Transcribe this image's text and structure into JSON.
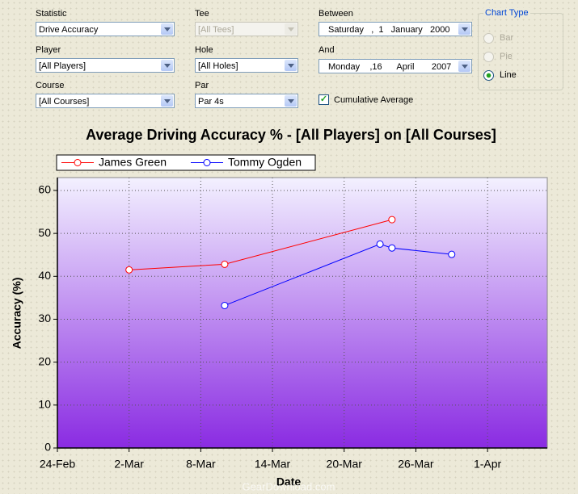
{
  "form": {
    "statistic": {
      "label": "Statistic",
      "value": "Drive Accuracy"
    },
    "tee": {
      "label": "Tee",
      "value": "[All Tees]"
    },
    "between": {
      "label": "Between",
      "weekday": "Saturday",
      "day": "1",
      "month": "January",
      "year": "2000"
    },
    "player": {
      "label": "Player",
      "value": "[All Players]"
    },
    "hole": {
      "label": "Hole",
      "value": "[All Holes]"
    },
    "and": {
      "label": "And",
      "weekday": "Monday",
      "day": "16",
      "month": "April",
      "year": "2007"
    },
    "course": {
      "label": "Course",
      "value": "[All Courses]"
    },
    "par": {
      "label": "Par",
      "value": "Par 4s"
    },
    "cumulative": {
      "label": "Cumulative Average",
      "checked": true
    },
    "chart_type": {
      "title": "Chart Type",
      "options": [
        "Bar",
        "Pie",
        "Line"
      ],
      "selected": 2
    }
  },
  "chart_data": {
    "type": "line",
    "title": "Average Driving Accuracy % - [All Players] on [All Courses]",
    "x_label": "Date",
    "y_label": "Accuracy (%)",
    "series": [
      {
        "name": "James Green",
        "color": "#ff0000",
        "x": [
          "2-Mar",
          "10-Mar",
          "24-Mar"
        ],
        "values": [
          41.5,
          42.8,
          53.2
        ]
      },
      {
        "name": "Tommy Ogden",
        "color": "#0000ff",
        "x": [
          "10-Mar",
          "23-Mar",
          "24-Mar",
          "29-Mar"
        ],
        "values": [
          33.2,
          47.5,
          46.6,
          45.1
        ]
      }
    ],
    "xlim": [
      "24-Feb",
      "6-Apr"
    ],
    "xticks": [
      "24-Feb",
      "2-Mar",
      "8-Mar",
      "14-Mar",
      "20-Mar",
      "26-Mar",
      "1-Apr"
    ],
    "ylim": [
      0,
      63
    ],
    "yticks": [
      0,
      10,
      20,
      30,
      40,
      50,
      60
    ],
    "grid": true
  },
  "watermark": "GearDownload.com"
}
